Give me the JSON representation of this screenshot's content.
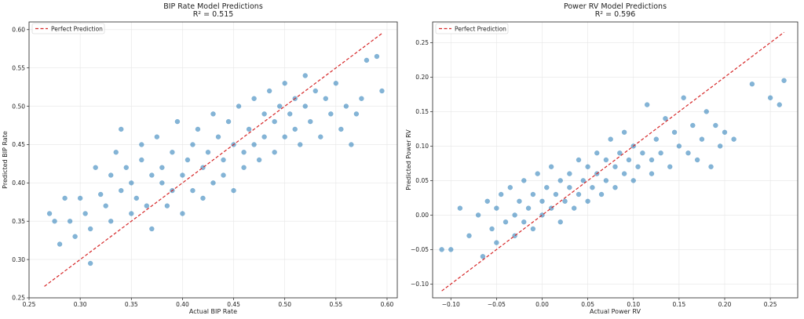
{
  "chart_data": [
    {
      "type": "scatter",
      "title": "BIP Rate Model Predictions",
      "subtitle": "R² = 0.515",
      "xlabel": "Actual BIP Rate",
      "ylabel": "Predicted BIP Rate",
      "xlim": [
        0.25,
        0.61
      ],
      "ylim": [
        0.25,
        0.61
      ],
      "xticks": [
        0.25,
        0.3,
        0.35,
        0.4,
        0.45,
        0.5,
        0.55,
        0.6
      ],
      "yticks": [
        0.25,
        0.3,
        0.35,
        0.4,
        0.45,
        0.5,
        0.55,
        0.6
      ],
      "xtick_labels": [
        "0.25",
        "0.30",
        "0.35",
        "0.40",
        "0.45",
        "0.50",
        "0.55",
        "0.60"
      ],
      "ytick_labels": [
        "0.25",
        "0.30",
        "0.35",
        "0.40",
        "0.45",
        "0.50",
        "0.55",
        "0.60"
      ],
      "grid": true,
      "legend": {
        "position": "top-left",
        "entries": [
          "Perfect Prediction"
        ]
      },
      "reference_line": {
        "name": "Perfect Prediction",
        "x": [
          0.265,
          0.595
        ],
        "y": [
          0.265,
          0.595
        ],
        "color": "#d62728"
      },
      "points_color": "#1f77b4",
      "points": [
        [
          0.27,
          0.36
        ],
        [
          0.275,
          0.35
        ],
        [
          0.28,
          0.32
        ],
        [
          0.285,
          0.38
        ],
        [
          0.29,
          0.35
        ],
        [
          0.295,
          0.33
        ],
        [
          0.3,
          0.38
        ],
        [
          0.305,
          0.36
        ],
        [
          0.31,
          0.34
        ],
        [
          0.31,
          0.295
        ],
        [
          0.315,
          0.42
        ],
        [
          0.32,
          0.385
        ],
        [
          0.325,
          0.37
        ],
        [
          0.33,
          0.41
        ],
        [
          0.33,
          0.35
        ],
        [
          0.335,
          0.44
        ],
        [
          0.34,
          0.39
        ],
        [
          0.34,
          0.47
        ],
        [
          0.345,
          0.42
        ],
        [
          0.35,
          0.36
        ],
        [
          0.35,
          0.4
        ],
        [
          0.355,
          0.38
        ],
        [
          0.36,
          0.43
        ],
        [
          0.36,
          0.45
        ],
        [
          0.365,
          0.37
        ],
        [
          0.37,
          0.41
        ],
        [
          0.37,
          0.34
        ],
        [
          0.375,
          0.46
        ],
        [
          0.38,
          0.4
        ],
        [
          0.38,
          0.42
        ],
        [
          0.385,
          0.37
        ],
        [
          0.39,
          0.44
        ],
        [
          0.39,
          0.39
        ],
        [
          0.395,
          0.48
        ],
        [
          0.4,
          0.41
        ],
        [
          0.4,
          0.36
        ],
        [
          0.405,
          0.43
        ],
        [
          0.41,
          0.45
        ],
        [
          0.41,
          0.39
        ],
        [
          0.415,
          0.47
        ],
        [
          0.42,
          0.42
        ],
        [
          0.42,
          0.38
        ],
        [
          0.425,
          0.44
        ],
        [
          0.43,
          0.4
        ],
        [
          0.43,
          0.49
        ],
        [
          0.435,
          0.46
        ],
        [
          0.44,
          0.43
        ],
        [
          0.44,
          0.41
        ],
        [
          0.445,
          0.48
        ],
        [
          0.45,
          0.45
        ],
        [
          0.45,
          0.39
        ],
        [
          0.455,
          0.5
        ],
        [
          0.46,
          0.44
        ],
        [
          0.46,
          0.42
        ],
        [
          0.465,
          0.47
        ],
        [
          0.47,
          0.51
        ],
        [
          0.47,
          0.45
        ],
        [
          0.475,
          0.43
        ],
        [
          0.48,
          0.49
        ],
        [
          0.48,
          0.46
        ],
        [
          0.485,
          0.52
        ],
        [
          0.49,
          0.44
        ],
        [
          0.49,
          0.48
        ],
        [
          0.495,
          0.5
        ],
        [
          0.5,
          0.46
        ],
        [
          0.5,
          0.53
        ],
        [
          0.505,
          0.49
        ],
        [
          0.51,
          0.47
        ],
        [
          0.51,
          0.51
        ],
        [
          0.515,
          0.45
        ],
        [
          0.52,
          0.5
        ],
        [
          0.52,
          0.54
        ],
        [
          0.525,
          0.48
        ],
        [
          0.53,
          0.52
        ],
        [
          0.535,
          0.46
        ],
        [
          0.54,
          0.51
        ],
        [
          0.545,
          0.49
        ],
        [
          0.55,
          0.53
        ],
        [
          0.555,
          0.47
        ],
        [
          0.56,
          0.5
        ],
        [
          0.565,
          0.45
        ],
        [
          0.57,
          0.49
        ],
        [
          0.575,
          0.51
        ],
        [
          0.58,
          0.56
        ],
        [
          0.59,
          0.565
        ],
        [
          0.595,
          0.52
        ]
      ]
    },
    {
      "type": "scatter",
      "title": "Power RV Model Predictions",
      "subtitle": "R² = 0.596",
      "xlabel": "Actual Power RV",
      "ylabel": "Predicted Power RV",
      "xlim": [
        -0.12,
        0.28
      ],
      "ylim": [
        -0.12,
        0.28
      ],
      "xticks": [
        -0.1,
        -0.05,
        0.0,
        0.05,
        0.1,
        0.15,
        0.2,
        0.25
      ],
      "yticks": [
        -0.1,
        -0.05,
        0.0,
        0.05,
        0.1,
        0.15,
        0.2,
        0.25
      ],
      "xtick_labels": [
        "−0.10",
        "−0.05",
        "0.00",
        "0.05",
        "0.10",
        "0.15",
        "0.20",
        "0.25"
      ],
      "ytick_labels": [
        "−0.10",
        "−0.05",
        "0.00",
        "0.05",
        "0.10",
        "0.15",
        "0.20",
        "0.25"
      ],
      "grid": true,
      "legend": {
        "position": "top-left",
        "entries": [
          "Perfect Prediction"
        ]
      },
      "reference_line": {
        "name": "Perfect Prediction",
        "x": [
          -0.11,
          0.265
        ],
        "y": [
          -0.11,
          0.265
        ],
        "color": "#d62728"
      },
      "points_color": "#1f77b4",
      "points": [
        [
          -0.11,
          -0.05
        ],
        [
          -0.1,
          -0.05
        ],
        [
          -0.09,
          0.01
        ],
        [
          -0.08,
          -0.03
        ],
        [
          -0.07,
          0.0
        ],
        [
          -0.065,
          -0.06
        ],
        [
          -0.06,
          0.02
        ],
        [
          -0.055,
          -0.02
        ],
        [
          -0.05,
          0.01
        ],
        [
          -0.05,
          -0.04
        ],
        [
          -0.045,
          0.03
        ],
        [
          -0.04,
          -0.01
        ],
        [
          -0.035,
          0.04
        ],
        [
          -0.03,
          0.0
        ],
        [
          -0.03,
          -0.03
        ],
        [
          -0.025,
          0.02
        ],
        [
          -0.02,
          0.05
        ],
        [
          -0.02,
          -0.01
        ],
        [
          -0.015,
          0.01
        ],
        [
          -0.01,
          0.03
        ],
        [
          -0.01,
          -0.02
        ],
        [
          -0.005,
          0.06
        ],
        [
          0.0,
          0.02
        ],
        [
          0.0,
          0.0
        ],
        [
          0.005,
          0.04
        ],
        [
          0.01,
          0.01
        ],
        [
          0.01,
          0.07
        ],
        [
          0.015,
          0.03
        ],
        [
          0.02,
          0.05
        ],
        [
          0.02,
          -0.01
        ],
        [
          0.025,
          0.02
        ],
        [
          0.03,
          0.06
        ],
        [
          0.03,
          0.04
        ],
        [
          0.035,
          0.01
        ],
        [
          0.04,
          0.08
        ],
        [
          0.04,
          0.03
        ],
        [
          0.045,
          0.05
        ],
        [
          0.05,
          0.02
        ],
        [
          0.05,
          0.07
        ],
        [
          0.055,
          0.04
        ],
        [
          0.06,
          0.09
        ],
        [
          0.06,
          0.06
        ],
        [
          0.065,
          0.03
        ],
        [
          0.07,
          0.08
        ],
        [
          0.07,
          0.05
        ],
        [
          0.075,
          0.11
        ],
        [
          0.08,
          0.07
        ],
        [
          0.08,
          0.04
        ],
        [
          0.085,
          0.09
        ],
        [
          0.09,
          0.06
        ],
        [
          0.09,
          0.12
        ],
        [
          0.095,
          0.08
        ],
        [
          0.1,
          0.05
        ],
        [
          0.1,
          0.1
        ],
        [
          0.105,
          0.07
        ],
        [
          0.11,
          0.09
        ],
        [
          0.115,
          0.16
        ],
        [
          0.12,
          0.08
        ],
        [
          0.12,
          0.06
        ],
        [
          0.125,
          0.11
        ],
        [
          0.13,
          0.09
        ],
        [
          0.135,
          0.14
        ],
        [
          0.14,
          0.07
        ],
        [
          0.145,
          0.12
        ],
        [
          0.15,
          0.1
        ],
        [
          0.155,
          0.17
        ],
        [
          0.16,
          0.09
        ],
        [
          0.165,
          0.13
        ],
        [
          0.17,
          0.08
        ],
        [
          0.175,
          0.11
        ],
        [
          0.18,
          0.15
        ],
        [
          0.185,
          0.07
        ],
        [
          0.19,
          0.13
        ],
        [
          0.195,
          0.1
        ],
        [
          0.2,
          0.12
        ],
        [
          0.21,
          0.11
        ],
        [
          0.23,
          0.19
        ],
        [
          0.25,
          0.17
        ],
        [
          0.26,
          0.16
        ],
        [
          0.265,
          0.195
        ]
      ]
    }
  ]
}
